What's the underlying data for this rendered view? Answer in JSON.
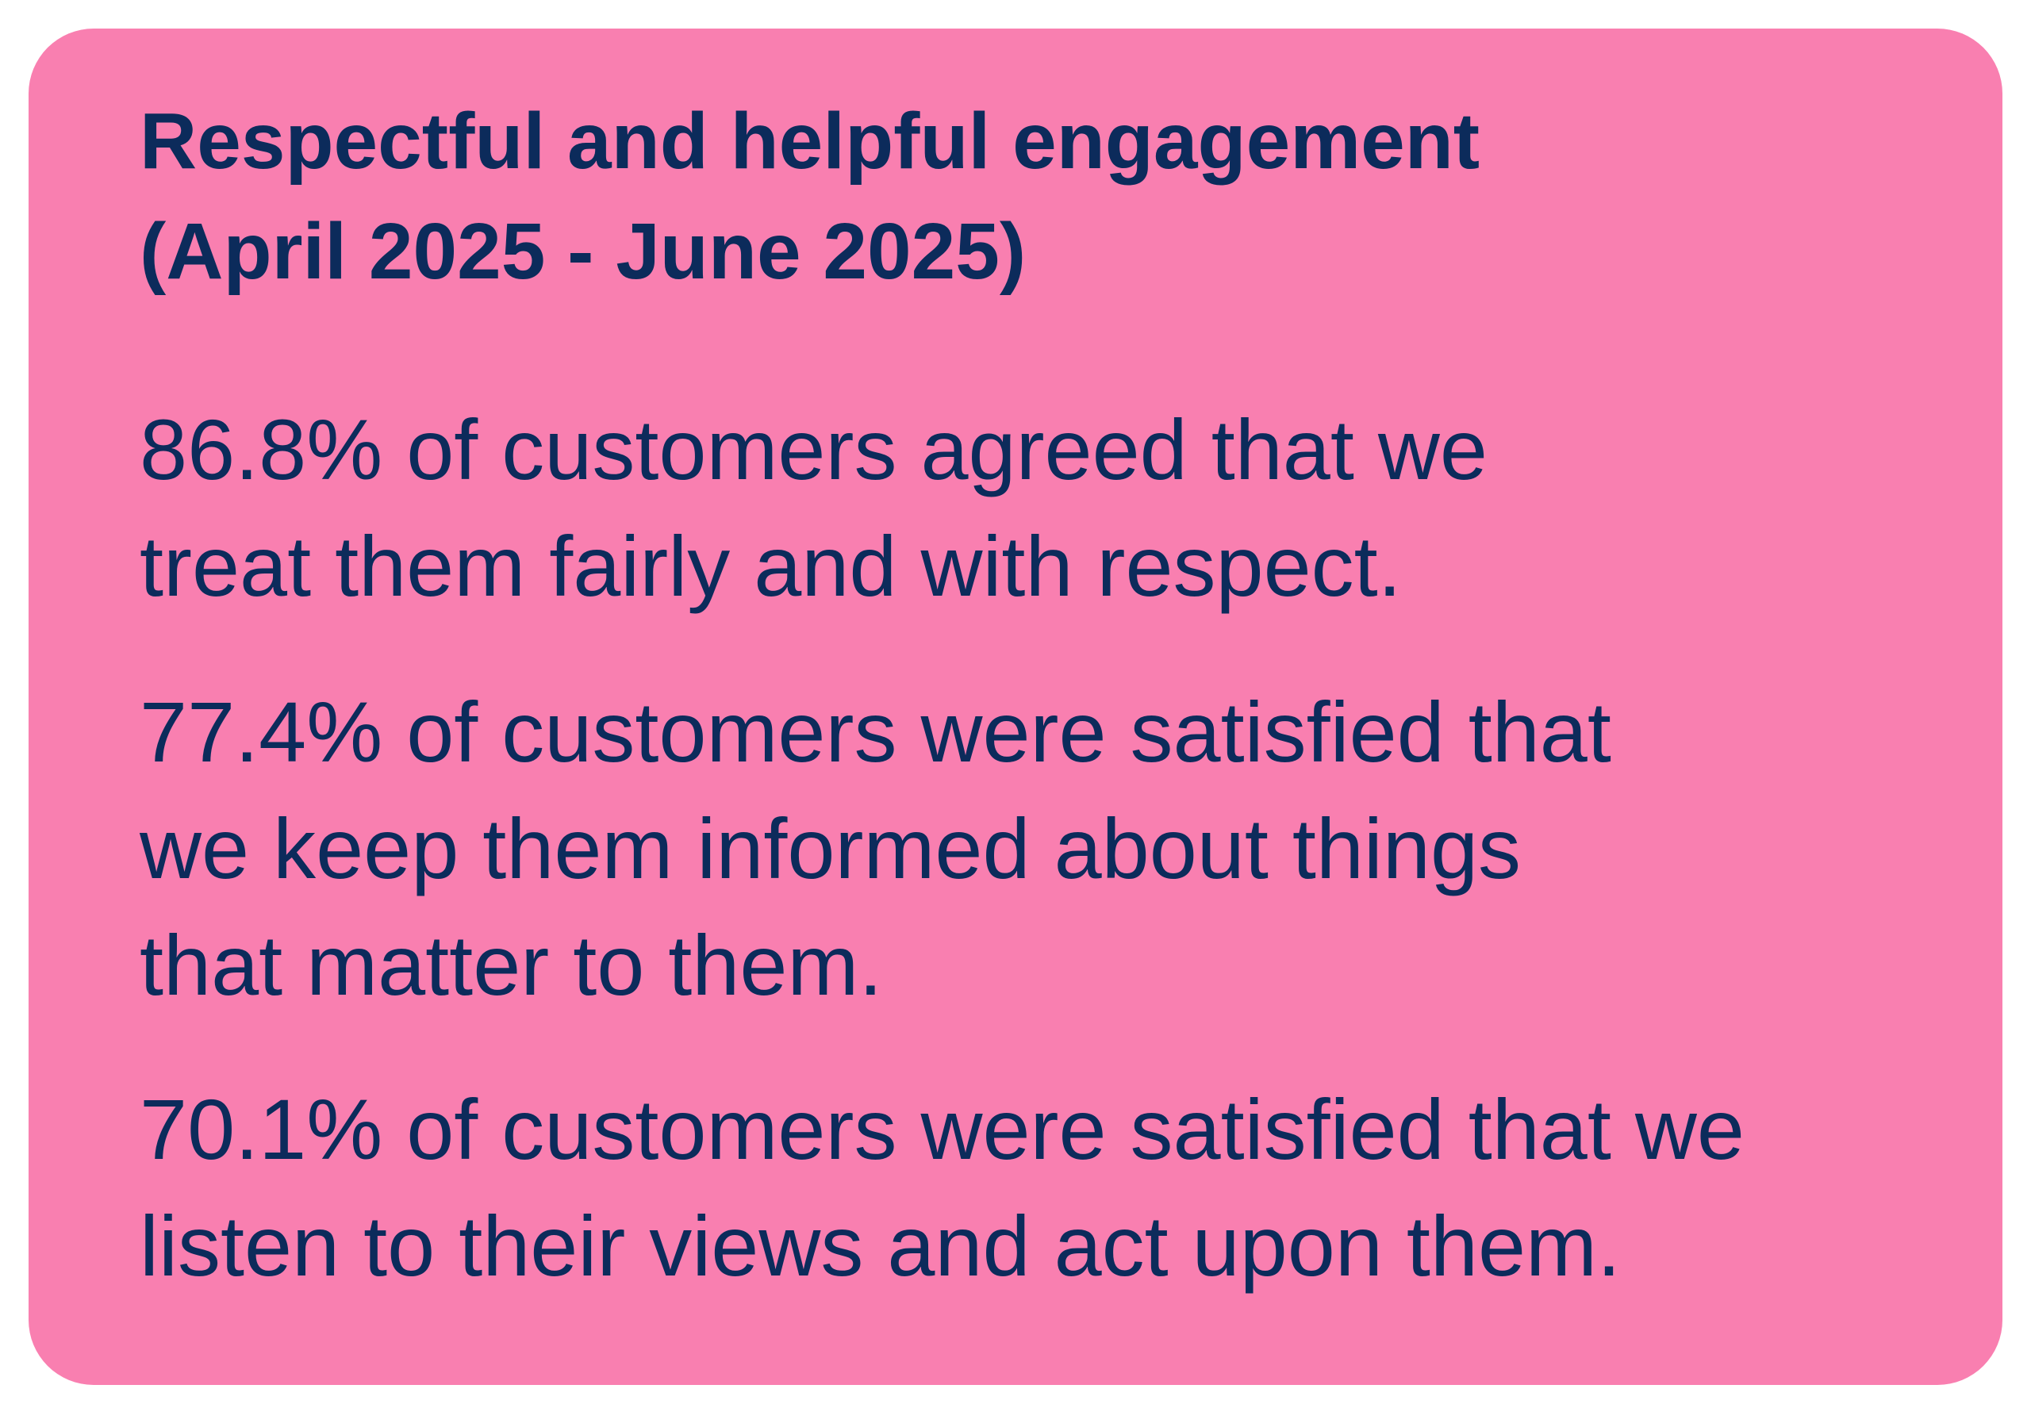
{
  "card": {
    "title_lines": [
      "Respectful and helpful engagement",
      "(April 2025 - June 2025)"
    ],
    "paragraphs": [
      [
        "86.8% of customers agreed that we",
        "treat them fairly and with respect."
      ],
      [
        "77.4% of customers were satisfied that",
        "we keep them informed about things",
        "that matter to them."
      ],
      [
        "70.1% of customers were satisfied that we",
        "listen to their views and act upon them."
      ]
    ]
  }
}
